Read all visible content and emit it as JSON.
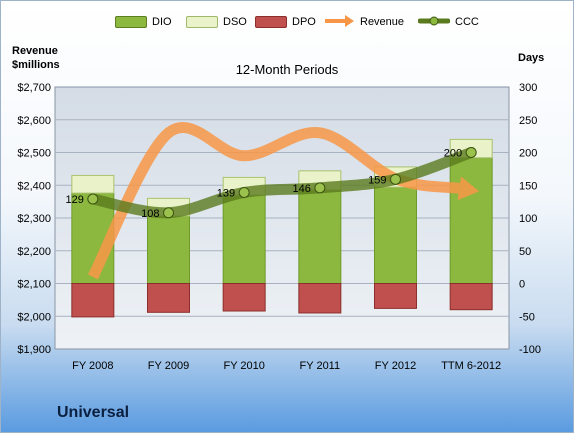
{
  "legend": [
    {
      "label": "DIO",
      "swatch": "bar",
      "fill": "#8cb83f",
      "stroke": "#5d7d23"
    },
    {
      "label": "DSO",
      "swatch": "bar",
      "fill": "#e9f2c8",
      "stroke": "#9fb86a"
    },
    {
      "label": "DPO",
      "swatch": "bar",
      "fill": "#c0504d",
      "stroke": "#8c2f2c"
    },
    {
      "label": "Revenue",
      "swatch": "arrow",
      "fill": "#f79646"
    },
    {
      "label": "CCC",
      "swatch": "line",
      "fill": "#5a7a1e"
    }
  ],
  "left_axis_title": {
    "line1": "Revenue",
    "line2": "$millions"
  },
  "right_axis_title": "Days",
  "subtitle": "12-Month Periods",
  "company": "Universal",
  "chart_data": {
    "type": "bar",
    "categories": [
      "FY 2008",
      "FY 2009",
      "FY 2010",
      "FY 2011",
      "FY 2012",
      "TTM 6-2012"
    ],
    "left_axis": {
      "ylim": [
        1900,
        2700
      ],
      "ticks": [
        "$1,900",
        "$2,000",
        "$2,100",
        "$2,200",
        "$2,300",
        "$2,400",
        "$2,500",
        "$2,600",
        "$2,700"
      ]
    },
    "right_axis": {
      "ylim": [
        -100,
        300
      ],
      "ticks": [
        "-100",
        "-50",
        "0",
        "50",
        "100",
        "150",
        "200",
        "250",
        "300"
      ]
    },
    "series": [
      {
        "name": "DIO",
        "axis": "right",
        "values": [
          138,
          103,
          135,
          143,
          147,
          192
        ]
      },
      {
        "name": "DSO",
        "axis": "right",
        "values": [
          27,
          27,
          27,
          29,
          31,
          28
        ]
      },
      {
        "name": "DPO",
        "axis": "right",
        "values": [
          -51,
          -44,
          -42,
          -45,
          -38,
          -40
        ]
      },
      {
        "name": "Revenue",
        "axis": "left",
        "values": [
          2120,
          2560,
          2490,
          2560,
          2420,
          2385
        ]
      },
      {
        "name": "CCC",
        "axis": "right",
        "values": [
          129,
          108,
          139,
          146,
          159,
          200
        ]
      }
    ],
    "ccc_labels": [
      "129",
      "108",
      "139",
      "146",
      "159",
      "200"
    ],
    "colors": {
      "plot_bg": "#dce3ec",
      "dio": "#8cb83f",
      "dso": "#e9f2c8",
      "dpo": "#c0504d",
      "revenue": "#f79646",
      "ccc": "#5a7a1e"
    },
    "grid": true
  }
}
